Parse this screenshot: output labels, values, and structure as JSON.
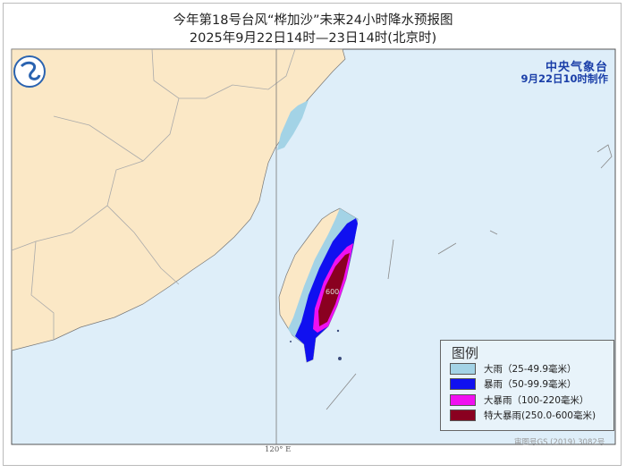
{
  "header": {
    "title": "今年第18号台风“桦加沙”未来24小时降水预报图",
    "subtitle": "2025年9月22日14时—23日14时(北京时)"
  },
  "agency": {
    "name": "中央气象台",
    "issued": "9月22日10时制作"
  },
  "map": {
    "meridian_label": "120° E",
    "contour_value": "600",
    "approval": "审图号GS (2019) 3082号",
    "land_color": "#fbe8c6",
    "sea_color": "#deeef9"
  },
  "legend": {
    "title": "图例",
    "items": [
      {
        "label": "大雨（25-49.9毫米）",
        "color": "#a3d3e6"
      },
      {
        "label": "暴雨（50-99.9毫米）",
        "color": "#1010f0"
      },
      {
        "label": "大暴雨（100-220毫米）",
        "color": "#f010f0"
      },
      {
        "label": "特大暴雨(250.0-600毫米)",
        "color": "#8a0020"
      }
    ]
  }
}
